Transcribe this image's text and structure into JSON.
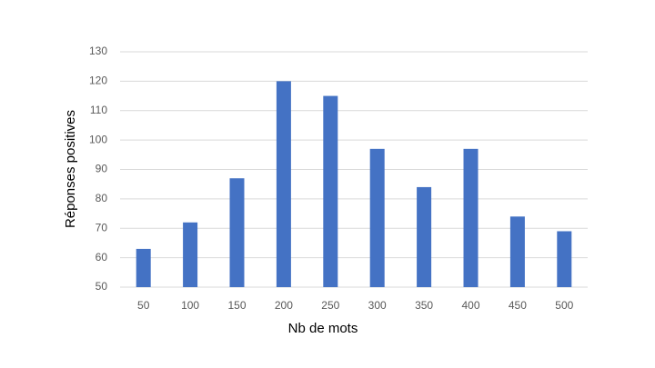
{
  "chart_data": {
    "type": "bar",
    "x_label": "Nb de mots",
    "y_label": "Réponses positives",
    "categories": [
      "50",
      "100",
      "150",
      "200",
      "250",
      "300",
      "350",
      "400",
      "450",
      "500"
    ],
    "values": [
      63,
      72,
      87,
      120,
      115,
      97,
      84,
      97,
      74,
      69
    ],
    "color": "#4472c4",
    "ylim": [
      50,
      130
    ],
    "yticks": [
      50,
      60,
      70,
      80,
      90,
      100,
      110,
      120,
      130
    ],
    "grid": true
  }
}
